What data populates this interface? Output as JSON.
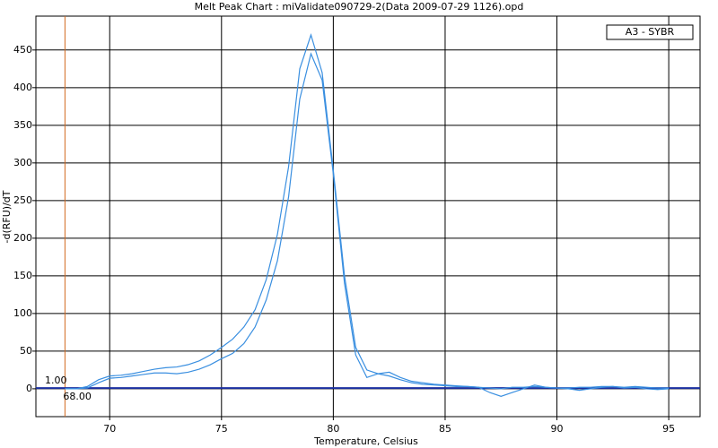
{
  "chart_data": {
    "type": "line",
    "title": "Melt Peak Chart : miValidate090729-2(Data 2009-07-29 1126).opd",
    "x_label": "Temperature, Celsius",
    "y_label": "-d(RFU)/dT",
    "legend_label": "A3 - SYBR",
    "xlim": [
      66.7,
      96.4
    ],
    "ylim": [
      -37,
      495
    ],
    "xticks": [
      70,
      75,
      80,
      85,
      90,
      95
    ],
    "yticks": [
      0,
      50,
      100,
      150,
      200,
      250,
      300,
      350,
      400,
      450
    ],
    "grid": true,
    "x": [
      68,
      68.5,
      69,
      69.5,
      70,
      70.5,
      71,
      71.5,
      72,
      72.5,
      73,
      73.5,
      74,
      74.5,
      75,
      75.5,
      76,
      76.5,
      77,
      77.5,
      78,
      78.5,
      79,
      79.5,
      80,
      80.5,
      81,
      81.5,
      82,
      82.5,
      83,
      83.5,
      84,
      84.5,
      85,
      85.5,
      86,
      86.5,
      87,
      87.5,
      88,
      88.5,
      89,
      89.5,
      90,
      90.5,
      91,
      91.5,
      92,
      92.5,
      93,
      93.5,
      94,
      94.5,
      95
    ],
    "series": [
      {
        "color": "#3a8fe0",
        "values": [
          0,
          0,
          3,
          12,
          17,
          18,
          20,
          23,
          26,
          28,
          29,
          32,
          37,
          45,
          55,
          66,
          82,
          105,
          145,
          205,
          295,
          425,
          470,
          420,
          290,
          150,
          55,
          25,
          20,
          17,
          12,
          8,
          6,
          5,
          4,
          3,
          3,
          2,
          1,
          0,
          2,
          2,
          3,
          2,
          1,
          1,
          2,
          2,
          3,
          3,
          2,
          3,
          2,
          1,
          1
        ]
      },
      {
        "color": "#3a8fe0",
        "values": [
          0,
          0,
          1,
          8,
          14,
          15,
          17,
          19,
          21,
          21,
          20,
          22,
          26,
          32,
          40,
          47,
          60,
          82,
          118,
          170,
          255,
          385,
          445,
          410,
          285,
          140,
          45,
          15,
          20,
          22,
          15,
          10,
          8,
          6,
          5,
          4,
          3,
          2,
          -5,
          -10,
          -5,
          0,
          5,
          2,
          1,
          0,
          -2,
          0,
          2,
          3,
          1,
          2,
          0,
          -1,
          0
        ]
      }
    ],
    "threshold": {
      "value": 1,
      "label": "1.00",
      "color": "#1a2fa0"
    },
    "marker": {
      "value": 68,
      "label": "68.00",
      "color": "#d2691e"
    }
  }
}
